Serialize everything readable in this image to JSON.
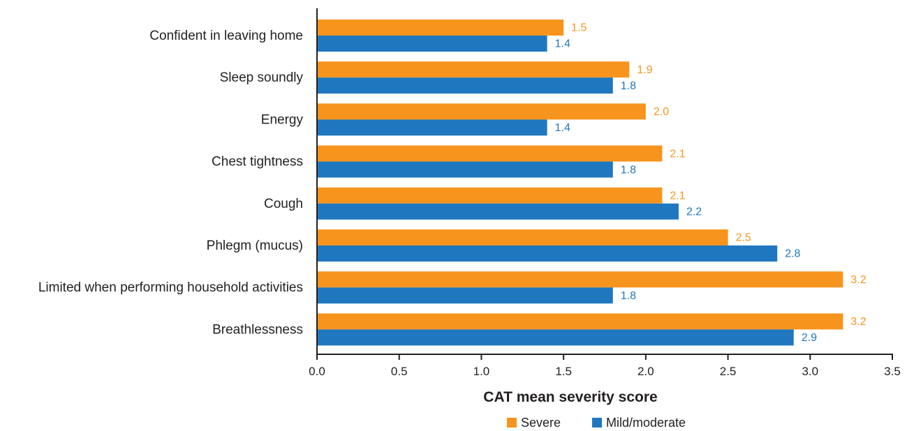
{
  "chart_data": {
    "type": "bar",
    "orientation": "horizontal",
    "categories": [
      "Confident in leaving home",
      "Sleep soundly",
      "Energy",
      "Chest tightness",
      "Cough",
      "Phlegm (mucus)",
      "Limited when performing household activities",
      "Breathlessness"
    ],
    "series": [
      {
        "name": "Severe",
        "color": "#f7941d",
        "values": [
          1.5,
          1.9,
          2.0,
          2.1,
          2.1,
          2.5,
          3.2,
          3.2
        ],
        "labels": [
          "1.5",
          "1.9",
          "2.0",
          "2.1",
          "2.1",
          "2.5",
          "3.2",
          "3.2"
        ]
      },
      {
        "name": "Mild/moderate",
        "color": "#1f77bf",
        "values": [
          1.4,
          1.8,
          1.4,
          1.8,
          2.2,
          2.8,
          1.8,
          2.9
        ],
        "labels": [
          "1.4",
          "1.8",
          "1.4",
          "1.8",
          "2.2",
          "2.8",
          "1.8",
          "2.9"
        ]
      }
    ],
    "xlabel": "CAT mean severity score",
    "xlim": [
      0,
      3.5
    ],
    "xticks": [
      "0.0",
      "0.5",
      "1.0",
      "1.5",
      "2.0",
      "2.5",
      "3.0",
      "3.5"
    ],
    "grid": false,
    "legend_position": "bottom"
  }
}
